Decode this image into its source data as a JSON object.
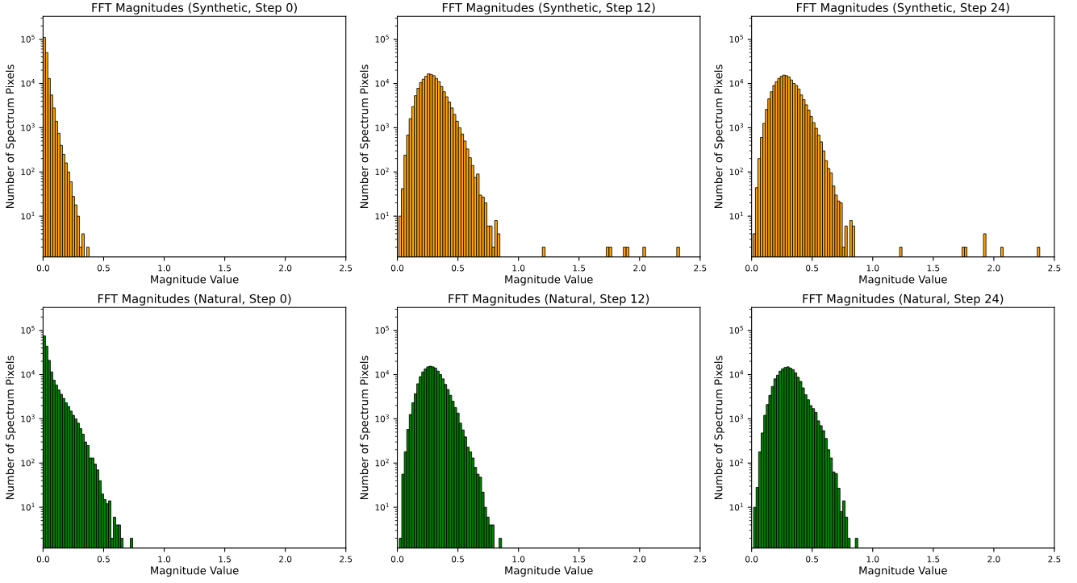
{
  "chart_data": [
    {
      "type": "histogram",
      "title": "FFT Magnitudes (Synthetic, Step 0)",
      "xlabel": "Magnitude Value",
      "ylabel": "Number of Spectrum Pixels",
      "color": "#ffa500",
      "log": "y",
      "bins": [
        0,
        0.02,
        0.04,
        0.06,
        0.08,
        0.1,
        0.12,
        0.14,
        0.16,
        0.18,
        0.2,
        0.22,
        0.24,
        0.26,
        0.28,
        0.3,
        0.32,
        0.34,
        0.36,
        0.38
      ],
      "values": [
        110000,
        50000,
        13000,
        5500,
        2800,
        1400,
        750,
        400,
        250,
        160,
        100,
        60,
        28,
        18,
        10,
        2,
        4,
        null,
        2
      ],
      "xlim": [
        0,
        2.5
      ],
      "xticks": [
        {
          "value": 0,
          "label": "0.0"
        },
        {
          "value": 0.5,
          "label": "0.5"
        },
        {
          "value": 1,
          "label": "1.0"
        },
        {
          "value": 1.5,
          "label": "1.5"
        },
        {
          "value": 2,
          "label": "2.0"
        },
        {
          "value": 2.5,
          "label": "2.5"
        }
      ],
      "ylim": [
        1.2,
        330000
      ],
      "yticks": [
        {
          "value": 10,
          "label": "10$^{1}$"
        },
        {
          "value": 100,
          "label": "10$^{2}$"
        },
        {
          "value": 1000,
          "label": "10$^{3}$"
        },
        {
          "value": 10000,
          "label": "10$^{4}$"
        },
        {
          "value": 100000,
          "label": "10$^{5}$"
        }
      ]
    },
    {
      "type": "histogram",
      "title": "FFT Magnitudes (Synthetic, Step 12)",
      "xlabel": "Magnitude Value",
      "ylabel": "Number of Spectrum Pixels",
      "color": "#ffa500",
      "log": "y",
      "bins": [
        0.012,
        0.0334,
        0.0548,
        0.0762,
        0.0976,
        0.119,
        0.1404,
        0.1618,
        0.1832,
        0.2046,
        0.226,
        0.2474,
        0.2688,
        0.2902,
        0.3116,
        0.333,
        0.3544,
        0.3758,
        0.3972,
        0.4186,
        0.44,
        0.4614,
        0.4828,
        0.5042,
        0.5256,
        0.547,
        0.5684,
        0.5898,
        0.6112,
        0.6326,
        0.654,
        0.6754,
        0.6968,
        0.7182,
        0.7396,
        0.761,
        0.7824,
        0.8038,
        0.8252,
        0.8466,
        1.197,
        1.22,
        1.725,
        1.748,
        1.771,
        1.866,
        1.889,
        1.912,
        2.027,
        2.05,
        2.307,
        2.33
      ],
      "values": [
        10,
        42,
        240,
        680,
        1600,
        3000,
        5300,
        7800,
        10500,
        12500,
        14500,
        16500,
        16000,
        15000,
        13000,
        11000,
        8500,
        6500,
        5000,
        3800,
        2800,
        2000,
        1400,
        1000,
        720,
        500,
        330,
        210,
        140,
        75,
        90,
        30,
        27,
        20,
        6,
        6,
        2,
        8,
        4,
        null,
        2,
        null,
        2,
        2,
        null,
        2,
        2,
        null,
        2,
        null,
        2
      ],
      "xlim": [
        0,
        2.5
      ],
      "xticks": [
        {
          "value": 0,
          "label": "0.0"
        },
        {
          "value": 0.5,
          "label": "0.5"
        },
        {
          "value": 1,
          "label": "1.0"
        },
        {
          "value": 1.5,
          "label": "1.5"
        },
        {
          "value": 2,
          "label": "2.0"
        },
        {
          "value": 2.5,
          "label": "2.5"
        }
      ],
      "ylim": [
        1.2,
        330000
      ],
      "yticks": [
        {
          "value": 10,
          "label": "10$^{1}$"
        },
        {
          "value": 100,
          "label": "10$^{2}$"
        },
        {
          "value": 1000,
          "label": "10$^{3}$"
        },
        {
          "value": 10000,
          "label": "10$^{4}$"
        },
        {
          "value": 100000,
          "label": "10$^{5}$"
        }
      ]
    },
    {
      "type": "histogram",
      "title": "FFT Magnitudes (Synthetic, Step 24)",
      "xlabel": "Magnitude Value",
      "ylabel": "Number of Spectrum Pixels",
      "color": "#ffa500",
      "log": "y",
      "bins": [
        0.011,
        0.0315,
        0.052,
        0.0725,
        0.093,
        0.1135,
        0.134,
        0.1545,
        0.175,
        0.1955,
        0.216,
        0.2365,
        0.257,
        0.2775,
        0.298,
        0.3185,
        0.339,
        0.3595,
        0.38,
        0.4005,
        0.421,
        0.4415,
        0.462,
        0.4825,
        0.503,
        0.5235,
        0.544,
        0.5645,
        0.585,
        0.6055,
        0.626,
        0.6465,
        0.667,
        0.6875,
        0.708,
        0.7285,
        0.749,
        0.7695,
        0.79,
        0.8105,
        0.831,
        0.8515,
        1.222,
        1.242,
        1.738,
        1.758,
        1.778,
        1.915,
        1.935,
        2.057,
        2.077,
        2.359,
        2.379
      ],
      "values": [
        4,
        44,
        200,
        600,
        1250,
        2600,
        4500,
        6500,
        9000,
        11000,
        13000,
        14500,
        15500,
        15000,
        14000,
        12000,
        10000,
        9000,
        7500,
        5500,
        4300,
        3300,
        2500,
        1800,
        1300,
        970,
        680,
        480,
        300,
        180,
        120,
        95,
        48,
        30,
        22,
        20,
        2,
        6,
        null,
        8,
        6,
        null,
        2,
        null,
        2,
        2,
        null,
        4,
        null,
        2,
        null,
        2
      ],
      "xlim": [
        0,
        2.5
      ],
      "xticks": [
        {
          "value": 0,
          "label": "0.0"
        },
        {
          "value": 0.5,
          "label": "0.5"
        },
        {
          "value": 1,
          "label": "1.0"
        },
        {
          "value": 1.5,
          "label": "1.5"
        },
        {
          "value": 2,
          "label": "2.0"
        },
        {
          "value": 2.5,
          "label": "2.5"
        }
      ],
      "ylim": [
        1.2,
        330000
      ],
      "yticks": [
        {
          "value": 10,
          "label": "10$^{1}$"
        },
        {
          "value": 100,
          "label": "10$^{2}$"
        },
        {
          "value": 1000,
          "label": "10$^{3}$"
        },
        {
          "value": 10000,
          "label": "10$^{4}$"
        },
        {
          "value": 100000,
          "label": "10$^{5}$"
        }
      ]
    },
    {
      "type": "histogram",
      "title": "FFT Magnitudes (Natural, Step 0)",
      "xlabel": "Magnitude Value",
      "ylabel": "Number of Spectrum Pixels",
      "color": "#008000",
      "log": "y",
      "bins": [
        0,
        0.02,
        0.04,
        0.06,
        0.08,
        0.1,
        0.12,
        0.14,
        0.16,
        0.18,
        0.2,
        0.22,
        0.24,
        0.26,
        0.28,
        0.3,
        0.32,
        0.34,
        0.36,
        0.38,
        0.4,
        0.42,
        0.44,
        0.46,
        0.48,
        0.5,
        0.52,
        0.54,
        0.56,
        0.58,
        0.6,
        0.62,
        0.64,
        0.66,
        0.68,
        0.7,
        0.72,
        0.74
      ],
      "values": [
        75000,
        44000,
        21000,
        11500,
        7500,
        5800,
        4500,
        3600,
        2900,
        2300,
        1900,
        1500,
        1200,
        1000,
        800,
        600,
        450,
        300,
        250,
        130,
        130,
        95,
        70,
        40,
        20,
        15,
        12,
        14,
        2,
        6,
        4,
        4,
        2,
        null,
        null,
        null,
        2
      ],
      "xlim": [
        0,
        2.5
      ],
      "xticks": [
        {
          "value": 0,
          "label": "0.0"
        },
        {
          "value": 0.5,
          "label": "0.5"
        },
        {
          "value": 1,
          "label": "1.0"
        },
        {
          "value": 1.5,
          "label": "1.5"
        },
        {
          "value": 2,
          "label": "2.0"
        },
        {
          "value": 2.5,
          "label": "2.5"
        }
      ],
      "ylim": [
        1.2,
        330000
      ],
      "yticks": [
        {
          "value": 10,
          "label": "10$^{1}$"
        },
        {
          "value": 100,
          "label": "10$^{2}$"
        },
        {
          "value": 1000,
          "label": "10$^{3}$"
        },
        {
          "value": 10000,
          "label": "10$^{4}$"
        },
        {
          "value": 100000,
          "label": "10$^{5}$"
        }
      ]
    },
    {
      "type": "histogram",
      "title": "FFT Magnitudes (Natural, Step 12)",
      "xlabel": "Magnitude Value",
      "ylabel": "Number of Spectrum Pixels",
      "color": "#008000",
      "log": "y",
      "bins": [
        0.016,
        0.0366,
        0.0572,
        0.0778,
        0.0984,
        0.119,
        0.1396,
        0.1602,
        0.1808,
        0.2014,
        0.222,
        0.2426,
        0.2632,
        0.2838,
        0.3044,
        0.325,
        0.3456,
        0.3662,
        0.3868,
        0.4074,
        0.428,
        0.4486,
        0.4692,
        0.4898,
        0.5104,
        0.531,
        0.5516,
        0.5722,
        0.5928,
        0.6134,
        0.634,
        0.6546,
        0.6752,
        0.6958,
        0.7164,
        0.737,
        0.7576,
        0.7782,
        0.7988,
        0.84,
        0.8606
      ],
      "values": [
        2,
        56,
        180,
        575,
        1250,
        2300,
        3700,
        6200,
        9000,
        11500,
        13500,
        15000,
        15500,
        15000,
        14000,
        12000,
        10000,
        8000,
        6000,
        4600,
        3400,
        2500,
        1800,
        1350,
        800,
        560,
        390,
        230,
        180,
        130,
        80,
        56,
        48,
        22,
        10,
        6,
        4,
        4,
        null,
        2
      ],
      "xlim": [
        0,
        2.5
      ],
      "xticks": [
        {
          "value": 0,
          "label": "0.0"
        },
        {
          "value": 0.5,
          "label": "0.5"
        },
        {
          "value": 1,
          "label": "1.0"
        },
        {
          "value": 1.5,
          "label": "1.5"
        },
        {
          "value": 2,
          "label": "2.0"
        },
        {
          "value": 2.5,
          "label": "2.5"
        }
      ],
      "ylim": [
        1.2,
        330000
      ],
      "yticks": [
        {
          "value": 10,
          "label": "10$^{1}$"
        },
        {
          "value": 100,
          "label": "10$^{2}$"
        },
        {
          "value": 1000,
          "label": "10$^{3}$"
        },
        {
          "value": 10000,
          "label": "10$^{4}$"
        },
        {
          "value": 100000,
          "label": "10$^{5}$"
        }
      ]
    },
    {
      "type": "histogram",
      "title": "FFT Magnitudes (Natural, Step 24)",
      "xlabel": "Magnitude Value",
      "ylabel": "Number of Spectrum Pixels",
      "color": "#008000",
      "log": "y",
      "bins": [
        0.016,
        0.037,
        0.058,
        0.079,
        0.1,
        0.121,
        0.142,
        0.163,
        0.184,
        0.205,
        0.226,
        0.247,
        0.268,
        0.289,
        0.31,
        0.331,
        0.352,
        0.373,
        0.394,
        0.415,
        0.436,
        0.457,
        0.478,
        0.499,
        0.52,
        0.541,
        0.562,
        0.583,
        0.604,
        0.625,
        0.646,
        0.667,
        0.688,
        0.709,
        0.73,
        0.751,
        0.772,
        0.793,
        0.814,
        0.856,
        0.877
      ],
      "values": [
        10,
        28,
        180,
        480,
        1200,
        2100,
        3400,
        5400,
        8000,
        9700,
        12000,
        13500,
        14500,
        15000,
        14000,
        13000,
        11000,
        8700,
        7000,
        5000,
        3500,
        2700,
        2000,
        1700,
        1400,
        900,
        700,
        540,
        360,
        200,
        130,
        63,
        58,
        27,
        8,
        14,
        6,
        2,
        null,
        2
      ],
      "xlim": [
        0,
        2.5
      ],
      "xticks": [
        {
          "value": 0,
          "label": "0.0"
        },
        {
          "value": 0.5,
          "label": "0.5"
        },
        {
          "value": 1,
          "label": "1.0"
        },
        {
          "value": 1.5,
          "label": "1.5"
        },
        {
          "value": 2,
          "label": "2.0"
        },
        {
          "value": 2.5,
          "label": "2.5"
        }
      ],
      "ylim": [
        1.2,
        330000
      ],
      "yticks": [
        {
          "value": 10,
          "label": "10$^{1}$"
        },
        {
          "value": 100,
          "label": "10$^{2}$"
        },
        {
          "value": 1000,
          "label": "10$^{3}$"
        },
        {
          "value": 10000,
          "label": "10$^{4}$"
        },
        {
          "value": 100000,
          "label": "10$^{5}$"
        }
      ]
    }
  ]
}
